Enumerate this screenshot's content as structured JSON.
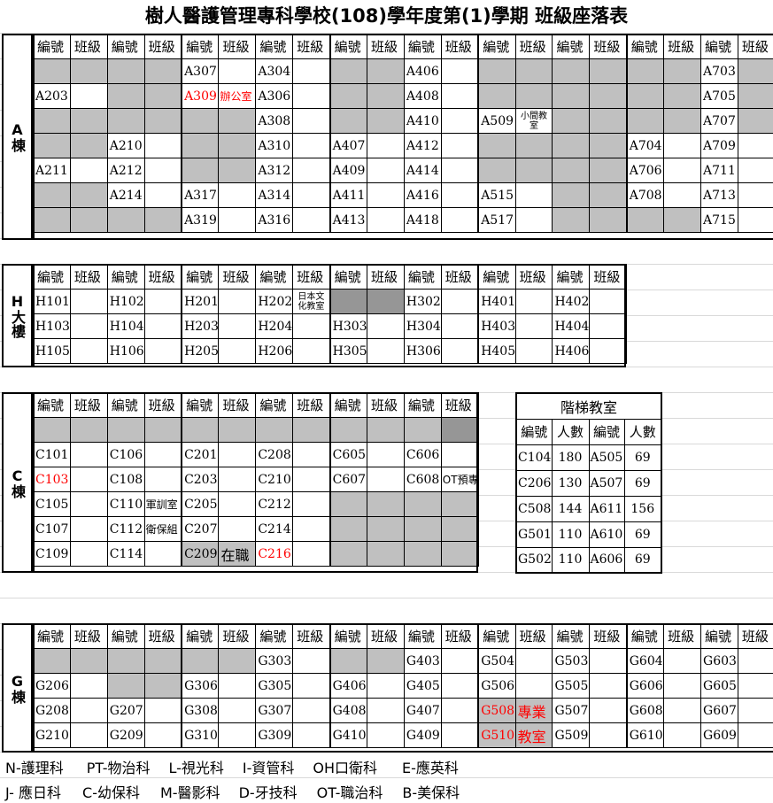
{
  "title": "樹人醫護管理專科學校(108)學年度第(1)學期 班級座落表",
  "header_pair": [
    "編號",
    "班級"
  ],
  "blocks": [
    {
      "key": "A",
      "label": "A棟",
      "top": 38,
      "cols": 20,
      "rows": [
        [
          {
            "g": 1
          },
          {
            "g": 1
          },
          {
            "g": 1
          },
          {
            "g": 1
          },
          {
            "t": "A307"
          },
          {},
          {
            "t": "A304"
          },
          {},
          {
            "g": 1
          },
          {
            "g": 1
          },
          {
            "t": "A406"
          },
          {},
          {
            "g": 1
          },
          {
            "g": 1
          },
          {
            "g": 1
          },
          {
            "g": 1
          },
          {
            "g": 1
          },
          {
            "g": 1
          },
          {
            "t": "A703"
          },
          {
            "g": 1
          }
        ],
        [
          {
            "t": "A203"
          },
          {},
          {
            "g": 1
          },
          {
            "g": 1
          },
          {
            "t": "A309",
            "r": 1
          },
          {
            "t": "辦公室",
            "r": 1,
            "n": 1
          },
          {
            "t": "A306"
          },
          {},
          {
            "g": 1
          },
          {
            "g": 1
          },
          {
            "t": "A408"
          },
          {},
          {
            "g": 1
          },
          {
            "g": 1
          },
          {
            "g": 1
          },
          {
            "g": 1
          },
          {
            "g": 1
          },
          {
            "g": 1
          },
          {
            "t": "A705"
          },
          {
            "g": 1
          }
        ],
        [
          {
            "g": 1
          },
          {
            "g": 1
          },
          {
            "g": 1
          },
          {
            "g": 1
          },
          {
            "g": 1
          },
          {
            "g": 1
          },
          {
            "t": "A308"
          },
          {},
          {
            "g": 1
          },
          {
            "g": 1
          },
          {
            "t": "A410"
          },
          {},
          {
            "t": "A509"
          },
          {
            "t": "小間教室",
            "s": 1
          },
          {
            "g": 1
          },
          {
            "g": 1
          },
          {
            "g": 1
          },
          {
            "g": 1
          },
          {
            "t": "A707"
          },
          {
            "g": 1
          }
        ],
        [
          {
            "g": 1
          },
          {
            "g": 1
          },
          {
            "t": "A210"
          },
          {},
          {
            "g": 1
          },
          {
            "g": 1
          },
          {
            "t": "A310"
          },
          {},
          {
            "t": "A407"
          },
          {},
          {
            "t": "A412"
          },
          {},
          {
            "g": 1
          },
          {
            "g": 1
          },
          {
            "g": 1
          },
          {
            "g": 1
          },
          {
            "t": "A704"
          },
          {},
          {
            "t": "A709"
          },
          {}
        ],
        [
          {
            "t": "A211"
          },
          {},
          {
            "t": "A212"
          },
          {},
          {
            "g": 1
          },
          {
            "g": 1
          },
          {
            "t": "A312"
          },
          {},
          {
            "t": "A409"
          },
          {},
          {
            "t": "A414"
          },
          {},
          {
            "g": 1
          },
          {
            "g": 1
          },
          {
            "g": 1
          },
          {
            "g": 1
          },
          {
            "t": "A706"
          },
          {},
          {
            "t": "A711"
          },
          {}
        ],
        [
          {
            "g": 1
          },
          {
            "g": 1
          },
          {
            "t": "A214"
          },
          {},
          {
            "t": "A317"
          },
          {},
          {
            "t": "A314"
          },
          {},
          {
            "t": "A411"
          },
          {},
          {
            "t": "A416"
          },
          {},
          {
            "t": "A515"
          },
          {},
          {
            "g": 1
          },
          {
            "g": 1
          },
          {
            "t": "A708"
          },
          {},
          {
            "t": "A713"
          },
          {}
        ],
        [
          {
            "g": 1
          },
          {
            "g": 1
          },
          {
            "g": 1
          },
          {
            "g": 1
          },
          {
            "t": "A319"
          },
          {},
          {
            "t": "A316"
          },
          {},
          {
            "t": "A413"
          },
          {},
          {
            "t": "A418"
          },
          {},
          {
            "t": "A517"
          },
          {},
          {
            "g": 1
          },
          {
            "g": 1
          },
          {
            "g": 1
          },
          {
            "g": 1
          },
          {
            "t": "A715"
          },
          {}
        ]
      ]
    },
    {
      "key": "H",
      "label": "H大樓",
      "top": 298,
      "cols": 16,
      "rows": [
        [
          {
            "t": "H101"
          },
          {},
          {
            "t": "H102"
          },
          {},
          {
            "t": "H201"
          },
          {},
          {
            "t": "H202"
          },
          {
            "t": "日本文化教室",
            "s": 1
          },
          {
            "d": 1
          },
          {
            "d": 1
          },
          {
            "t": "H302"
          },
          {},
          {
            "t": "H401"
          },
          {},
          {
            "t": "H402"
          },
          {}
        ],
        [
          {
            "t": "H103"
          },
          {},
          {
            "t": "H104"
          },
          {},
          {
            "t": "H203"
          },
          {},
          {
            "t": "H204"
          },
          {},
          {
            "t": "H303"
          },
          {},
          {
            "t": "H304"
          },
          {},
          {
            "t": "H403"
          },
          {},
          {
            "t": "H404"
          },
          {}
        ],
        [
          {
            "t": "H105"
          },
          {},
          {
            "t": "H106"
          },
          {},
          {
            "t": "H205"
          },
          {},
          {
            "t": "H206"
          },
          {},
          {
            "t": "H305"
          },
          {},
          {
            "t": "H306"
          },
          {},
          {
            "t": "H405"
          },
          {},
          {
            "t": "H406"
          },
          {}
        ]
      ]
    },
    {
      "key": "C",
      "label": "C棟",
      "top": 443,
      "cols": 12,
      "rows": [
        [
          {
            "g": 1
          },
          {
            "g": 1
          },
          {
            "g": 1
          },
          {
            "g": 1
          },
          {
            "g": 1
          },
          {
            "g": 1
          },
          {
            "g": 1
          },
          {
            "g": 1
          },
          {
            "g": 1
          },
          {
            "g": 1
          },
          {
            "g": 1
          },
          {
            "d": 1
          }
        ],
        [
          {
            "t": "C101"
          },
          {},
          {
            "t": "C106"
          },
          {},
          {
            "t": "C201"
          },
          {},
          {
            "t": "C208"
          },
          {},
          {
            "t": "C605"
          },
          {},
          {
            "t": "C606"
          },
          {}
        ],
        [
          {
            "t": "C103",
            "r": 1
          },
          {},
          {
            "t": "C108"
          },
          {},
          {
            "t": "C203"
          },
          {},
          {
            "t": "C210"
          },
          {},
          {
            "t": "C607"
          },
          {},
          {
            "t": "C608"
          },
          {
            "t": "OT預專",
            "n": 1
          }
        ],
        [
          {
            "t": "C105"
          },
          {},
          {
            "t": "C110"
          },
          {
            "t": "軍訓室",
            "n": 1
          },
          {
            "t": "C205"
          },
          {},
          {
            "t": "C212"
          },
          {},
          {
            "g": 1
          },
          {
            "g": 1
          },
          {
            "g": 1
          },
          {
            "g": 1
          }
        ],
        [
          {
            "t": "C107"
          },
          {},
          {
            "t": "C112"
          },
          {
            "t": "衛保組",
            "n": 1
          },
          {
            "t": "C207"
          },
          {},
          {
            "t": "C214"
          },
          {},
          {
            "g": 1
          },
          {
            "g": 1
          },
          {
            "g": 1
          },
          {
            "g": 1
          }
        ],
        [
          {
            "t": "C109"
          },
          {},
          {
            "t": "C114"
          },
          {},
          {
            "t": "C209",
            "g": 1
          },
          {
            "t": "在職",
            "g": 1,
            "b": 1
          },
          {
            "t": "C216",
            "r": 1
          },
          {},
          {
            "g": 1
          },
          {
            "g": 1
          },
          {
            "g": 1
          },
          {
            "g": 1
          }
        ]
      ]
    },
    {
      "key": "G",
      "label": "G棟",
      "top": 704,
      "cols": 20,
      "rows": [
        [
          {
            "g": 1
          },
          {
            "g": 1
          },
          {
            "g": 1
          },
          {
            "g": 1
          },
          {
            "g": 1
          },
          {
            "g": 1
          },
          {
            "t": "G303"
          },
          {},
          {
            "g": 1
          },
          {
            "g": 1
          },
          {
            "t": "G403"
          },
          {},
          {
            "t": "G504"
          },
          {},
          {
            "t": "G503"
          },
          {},
          {
            "t": "G604"
          },
          {},
          {
            "t": "G603"
          },
          {}
        ],
        [
          {
            "t": "G206"
          },
          {},
          {
            "g": 1
          },
          {
            "g": 1
          },
          {
            "t": "G306"
          },
          {},
          {
            "t": "G305"
          },
          {},
          {
            "t": "G406"
          },
          {},
          {
            "t": "G405"
          },
          {},
          {
            "t": "G506"
          },
          {},
          {
            "t": "G505"
          },
          {},
          {
            "t": "G606"
          },
          {},
          {
            "t": "G605"
          },
          {}
        ],
        [
          {
            "t": "G208"
          },
          {},
          {
            "t": "G207"
          },
          {},
          {
            "t": "G308"
          },
          {},
          {
            "t": "G307"
          },
          {},
          {
            "t": "G408"
          },
          {},
          {
            "t": "G407"
          },
          {},
          {
            "t": "G508",
            "r": 1,
            "g": 1
          },
          {
            "t": "專業",
            "r": 1,
            "g": 1,
            "b": 1
          },
          {
            "t": "G507"
          },
          {},
          {
            "t": "G608"
          },
          {},
          {
            "t": "G607"
          },
          {}
        ],
        [
          {
            "t": "G210"
          },
          {},
          {
            "t": "G209"
          },
          {},
          {
            "t": "G310"
          },
          {},
          {
            "t": "G309"
          },
          {},
          {
            "t": "G410"
          },
          {},
          {
            "t": "G409"
          },
          {},
          {
            "t": "G510",
            "r": 1,
            "g": 1
          },
          {
            "t": "教室",
            "r": 1,
            "g": 1,
            "b": 1
          },
          {
            "t": "G509"
          },
          {},
          {
            "t": "G610"
          },
          {},
          {
            "t": "G609"
          },
          {}
        ]
      ]
    }
  ],
  "stairs": {
    "caption": "階梯教室",
    "headers": [
      "編號",
      "人數",
      "編號",
      "人數"
    ],
    "rows": [
      [
        "C104",
        "180",
        "A505",
        "69"
      ],
      [
        "C206",
        "130",
        "A507",
        "69"
      ],
      [
        "C508",
        "144",
        "A611",
        "156"
      ],
      [
        "G501",
        "110",
        "A610",
        "69"
      ],
      [
        "G502",
        "110",
        "A606",
        "69"
      ]
    ]
  },
  "legend": {
    "line1": [
      "N-護理科",
      "PT-物治科",
      "L-視光科",
      "I-資管科",
      "OH口衛科",
      "E-應英科"
    ],
    "line2": [
      "J- 應日科",
      "C-幼保科",
      "M-醫影科",
      "D-牙技科",
      "OT-職治科",
      "B-美保科"
    ]
  }
}
